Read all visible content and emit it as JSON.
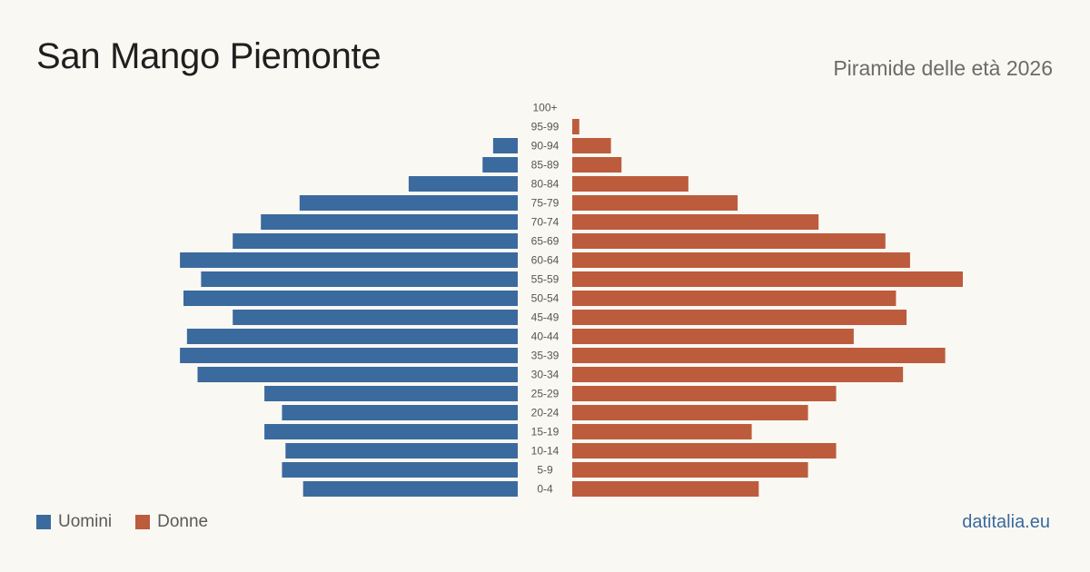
{
  "header": {
    "title": "San Mango Piemonte",
    "subtitle": "Piramide delle età 2026"
  },
  "legend": {
    "men_label": "Uomini",
    "women_label": "Donne"
  },
  "footer": {
    "source": "datitalia.eu"
  },
  "colors": {
    "men": "#3b6a9e",
    "women": "#bc5c3d",
    "age_label": "#555555"
  },
  "chart_data": {
    "type": "bar",
    "orientation": "horizontal-population-pyramid",
    "categories": [
      "100+",
      "95-99",
      "90-94",
      "85-89",
      "80-84",
      "75-79",
      "70-74",
      "65-69",
      "60-64",
      "55-59",
      "50-54",
      "45-49",
      "40-44",
      "35-39",
      "30-34",
      "25-29",
      "20-24",
      "15-19",
      "10-14",
      "5-9",
      "0-4"
    ],
    "series": [
      {
        "name": "Uomini",
        "side": "left",
        "values": [
          0,
          0,
          7,
          10,
          31,
          62,
          73,
          81,
          96,
          90,
          95,
          81,
          94,
          96,
          91,
          72,
          67,
          72,
          66,
          67,
          61
        ]
      },
      {
        "name": "Donne",
        "side": "right",
        "values": [
          0,
          2,
          11,
          14,
          33,
          47,
          70,
          89,
          96,
          111,
          92,
          95,
          80,
          106,
          94,
          75,
          67,
          51,
          75,
          67,
          53
        ]
      }
    ],
    "xlim": [
      0,
      111
    ],
    "grid": false,
    "legend_position": "bottom-left"
  }
}
